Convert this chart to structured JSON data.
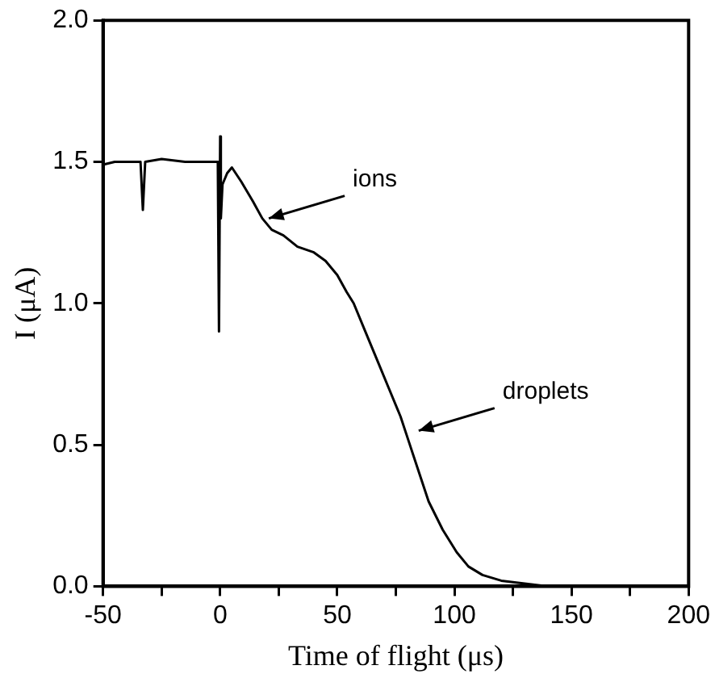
{
  "chart_data": {
    "type": "line",
    "xlabel": "Time of flight (μs)",
    "ylabel": "I (μA)",
    "xlim": [
      -50,
      200
    ],
    "xticks": [
      -50,
      {
        "value": -25,
        "label": null
      },
      0,
      {
        "value": 25,
        "label": null
      },
      50,
      {
        "value": 75,
        "label": null
      },
      100,
      {
        "value": 125,
        "label": null
      },
      150,
      {
        "value": 175,
        "label": null
      },
      200
    ],
    "ylim": [
      0,
      2
    ],
    "yticks": [
      {
        "value": 0,
        "label": "0.0"
      },
      0.5,
      {
        "value": 1,
        "label": "1.0"
      },
      1.5,
      {
        "value": 2,
        "label": "2.0"
      }
    ],
    "grid": false,
    "legend": false,
    "marker": "none",
    "line_style": "solid",
    "annotations": [
      {
        "text": "ions",
        "x": 18,
        "y": 1.3
      },
      {
        "text": "droplets",
        "x": 82,
        "y": 0.55
      }
    ],
    "series": [
      {
        "color": "#000000",
        "x": [
          -50,
          -45,
          -40,
          -34,
          -33,
          -32,
          -25,
          -15,
          -5,
          -1,
          -0.5,
          0,
          0.3,
          1,
          3,
          5,
          9,
          14,
          18,
          22,
          27,
          33,
          40,
          45,
          50,
          54,
          57,
          62,
          67,
          72,
          77,
          81,
          85,
          89,
          95,
          101,
          106,
          112,
          120,
          130,
          140,
          160,
          180,
          200
        ],
        "values": [
          1.49,
          1.5,
          1.5,
          1.5,
          1.33,
          1.5,
          1.51,
          1.5,
          1.5,
          1.5,
          0.9,
          1.59,
          1.3,
          1.42,
          1.46,
          1.48,
          1.43,
          1.36,
          1.3,
          1.26,
          1.24,
          1.2,
          1.18,
          1.15,
          1.1,
          1.04,
          1.0,
          0.9,
          0.8,
          0.7,
          0.6,
          0.5,
          0.4,
          0.3,
          0.2,
          0.12,
          0.07,
          0.04,
          0.02,
          0.01,
          0.0,
          0.0,
          0.0,
          0.0
        ]
      }
    ]
  }
}
